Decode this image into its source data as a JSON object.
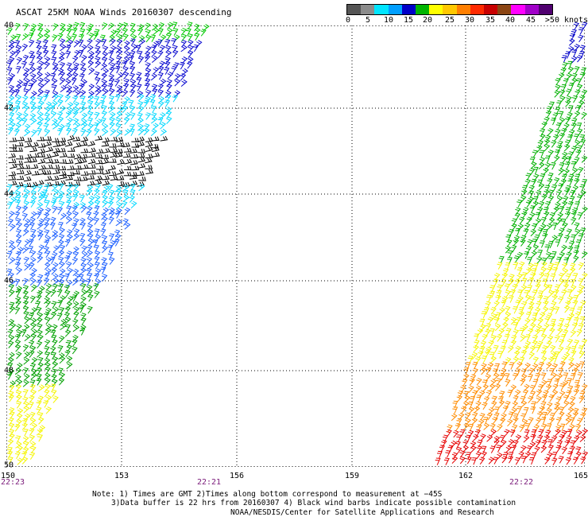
{
  "title": "ASCAT 25KM NOAA Winds 20160307 descending",
  "colorbar": {
    "labels": [
      "0",
      "5",
      "10",
      "15",
      "20",
      "25",
      "30",
      "35",
      "40",
      "45",
      ">50 knots"
    ],
    "colors": [
      "#555555",
      "#8c8c8c",
      "#00e5ff",
      "#009fff",
      "#0000c8",
      "#00b400",
      "#ffff00",
      "#ffc800",
      "#ff7f00",
      "#ff2a00",
      "#c80000",
      "#8b4513",
      "#ff00ff",
      "#a000c8",
      "#500070"
    ]
  },
  "map": {
    "lat_labels": [
      "40",
      "42",
      "44",
      "46",
      "48",
      "50"
    ],
    "lon_labels": [
      "150",
      "153",
      "156",
      "159",
      "162",
      "165"
    ],
    "time_labels": [
      "22:23",
      "22:21",
      "22:22"
    ],
    "gridline_color": "#000000",
    "swath_colors": {
      "west_top": "#00c800",
      "west_upper": "#0a0ad0",
      "west_mid": "#00d8ff",
      "west_black": "#000000",
      "west_blue": "#1e60ff",
      "west_green": "#00a000",
      "west_yellow": "#f5f500",
      "east_blue": "#0000c8",
      "east_green": "#00b000",
      "east_yellow": "#f5f500",
      "east_orange": "#ff8c00",
      "east_red": "#e60000"
    }
  },
  "notes": {
    "line1": "Note: 1) Times are GMT 2)Times along bottom correspond to measurement at −45S",
    "line2": "3)Data buffer is 22 hrs from 20160307 4) Black wind barbs indicate possible contamination",
    "line3": "NOAA/NESDIS/Center for Satellite Applications and Research"
  }
}
